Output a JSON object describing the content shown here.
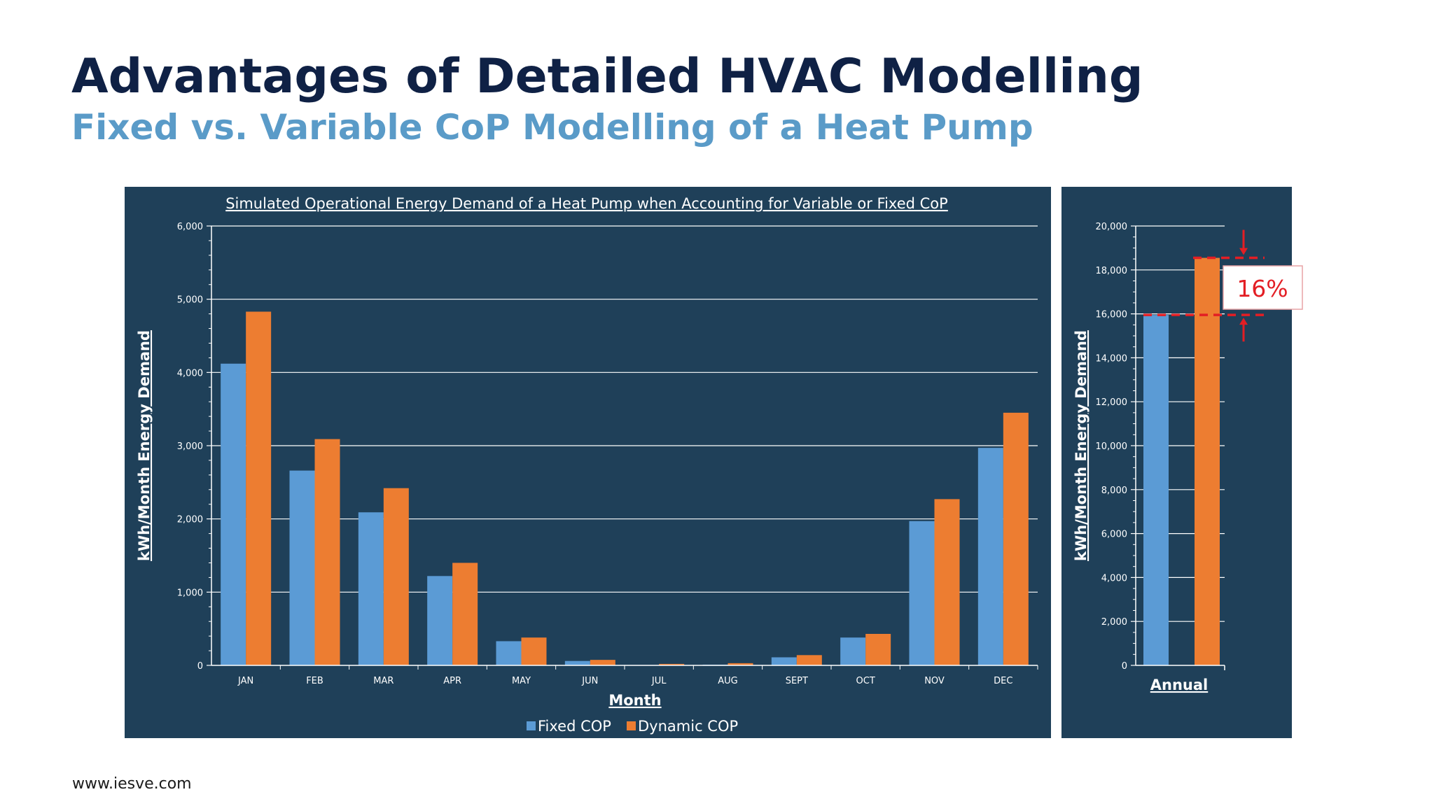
{
  "slide": {
    "title": "Advantages of Detailed HVAC Modelling",
    "subtitle": "Fixed vs. Variable CoP Modelling of a Heat Pump",
    "footer": "www.iesve.com"
  },
  "colors": {
    "panel": "#1f4059",
    "fixed": "#5b9bd5",
    "dynamic": "#ed7d31",
    "grid": "#ffffff",
    "callout": "#e31e24"
  },
  "chart_data": [
    {
      "type": "bar",
      "title": "Simulated Operational Energy Demand of a Heat Pump when Accounting for Variable or Fixed CoP",
      "xlabel": "Month",
      "ylabel": "kWh/Month Energy Demand",
      "ylim": [
        0,
        6000
      ],
      "yticks": [
        0,
        1000,
        2000,
        3000,
        4000,
        5000,
        6000
      ],
      "ytick_labels": [
        "0",
        "1,000",
        "2,000",
        "3,000",
        "4,000",
        "5,000",
        "6,000"
      ],
      "categories": [
        "JAN",
        "FEB",
        "MAR",
        "APR",
        "MAY",
        "JUN",
        "JUL",
        "AUG",
        "SEPT",
        "OCT",
        "NOV",
        "DEC"
      ],
      "series": [
        {
          "name": "Fixed COP",
          "values": [
            4120,
            2660,
            2090,
            1220,
            330,
            60,
            5,
            10,
            110,
            380,
            1970,
            2970
          ]
        },
        {
          "name": "Dynamic COP",
          "values": [
            4830,
            3090,
            2420,
            1400,
            380,
            75,
            20,
            30,
            140,
            430,
            2270,
            3450
          ]
        }
      ],
      "grid": true,
      "legend": "bottom"
    },
    {
      "type": "bar",
      "title": "",
      "xlabel": "Annual",
      "ylabel": "kWh/Month Energy Demand",
      "ylim": [
        0,
        20000
      ],
      "yticks": [
        0,
        2000,
        4000,
        6000,
        8000,
        10000,
        12000,
        14000,
        16000,
        18000,
        20000
      ],
      "ytick_labels": [
        "0",
        "2,000",
        "4,000",
        "6,000",
        "8,000",
        "10,000",
        "12,000",
        "14,000",
        "16,000",
        "18,000",
        "20,000"
      ],
      "categories": [
        "Annual"
      ],
      "series": [
        {
          "name": "Fixed COP",
          "values": [
            15950
          ]
        },
        {
          "name": "Dynamic COP",
          "values": [
            18550
          ]
        }
      ],
      "grid": true,
      "annotation": "16%"
    }
  ]
}
